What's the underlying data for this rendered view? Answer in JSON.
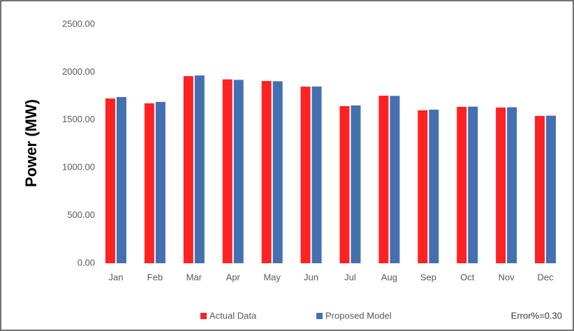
{
  "chart_data": {
    "type": "bar",
    "y_axis_label": "Power (MW)",
    "categories": [
      "Jan",
      "Feb",
      "Mar",
      "Apr",
      "May",
      "Jun",
      "Jul",
      "Aug",
      "Sep",
      "Oct",
      "Nov",
      "Dec"
    ],
    "series": [
      {
        "name": "Actual Data",
        "color": "#ff2222",
        "values": [
          1725,
          1674,
          1959,
          1925,
          1908,
          1849,
          1645,
          1754,
          1601,
          1637,
          1630,
          1542
        ]
      },
      {
        "name": "Proposed Model",
        "color": "#4470b0",
        "values": [
          1740,
          1689,
          1966,
          1920,
          1905,
          1850,
          1652,
          1752,
          1608,
          1640,
          1633,
          1545
        ]
      }
    ],
    "ylim": [
      0,
      2500
    ],
    "yticks": [
      {
        "value": 0,
        "label": "0.00"
      },
      {
        "value": 500,
        "label": "500.00"
      },
      {
        "value": 1000,
        "label": "1000.00"
      },
      {
        "value": 1500,
        "label": "1500.00"
      },
      {
        "value": 2000,
        "label": "2000.00"
      },
      {
        "value": 2500,
        "label": "2500.00"
      }
    ],
    "grid": false,
    "legend": "bottom",
    "annotation": "Error%=0.30"
  }
}
